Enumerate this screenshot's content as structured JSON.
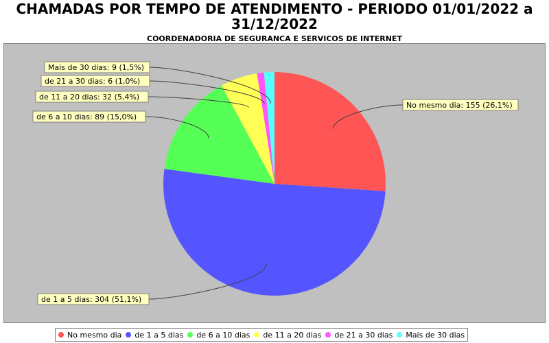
{
  "title_lines": [
    "CHAMADAS POR TEMPO DE ATENDIMENTO - PERIODO 01/01/2022 a",
    "31/12/2022"
  ],
  "subtitle": "COORDENADORIA DE SEGURANCA E SERVICOS DE INTERNET",
  "chart_data": {
    "type": "pie",
    "title": "CHAMADAS POR TEMPO DE ATENDIMENTO - PERIODO 01/01/2022 a 31/12/2022",
    "subtitle": "COORDENADORIA DE SEGURANCA E SERVICOS DE INTERNET",
    "legend_position": "bottom",
    "slices": [
      {
        "name": "No mesmo dia",
        "value": 155,
        "percent": "26,1%",
        "label": "No mesmo dia: 155 (26,1%)",
        "color": "#ff5555"
      },
      {
        "name": "de 1 a 5 dias",
        "value": 304,
        "percent": "51,1%",
        "label": "de 1 a 5 dias: 304 (51,1%)",
        "color": "#5555ff"
      },
      {
        "name": "de 6 a 10 dias",
        "value": 89,
        "percent": "15,0%",
        "label": "de 6 a 10 dias: 89 (15,0%)",
        "color": "#55ff55"
      },
      {
        "name": "de 11 a 20 dias",
        "value": 32,
        "percent": "5,4%",
        "label": "de 11 a 20 dias: 32 (5,4%)",
        "color": "#ffff55"
      },
      {
        "name": "de 21 a 30 dias",
        "value": 6,
        "percent": "1,0%",
        "label": "de 21 a 30 dias: 6 (1,0%)",
        "color": "#ff55ff"
      },
      {
        "name": "Mais de 30 dias",
        "value": 9,
        "percent": "1,5%",
        "label": "Mais de 30 dias: 9 (1,5%)",
        "color": "#55ffff"
      }
    ]
  }
}
